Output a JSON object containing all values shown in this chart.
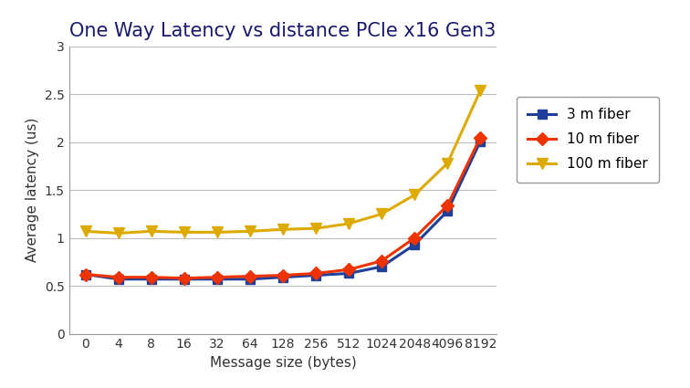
{
  "title": "One Way Latency vs distance PCIe x16 Gen3",
  "xlabel": "Message size (bytes)",
  "ylabel": "Average latency (us)",
  "x_labels": [
    "0",
    "4",
    "8",
    "16",
    "32",
    "64",
    "128",
    "256",
    "512",
    "1024",
    "2048",
    "4096",
    "8192"
  ],
  "x_positions": [
    0,
    1,
    2,
    3,
    4,
    5,
    6,
    7,
    8,
    9,
    10,
    11,
    12
  ],
  "series": [
    {
      "label": "3 m fiber",
      "color": "#1f3f99",
      "marker": "s",
      "markersize": 7,
      "linewidth": 2.2,
      "values": [
        0.62,
        0.57,
        0.57,
        0.57,
        0.57,
        0.57,
        0.59,
        0.61,
        0.63,
        0.7,
        0.93,
        1.28,
        2.01
      ]
    },
    {
      "label": "10 m fiber",
      "color": "#ee3300",
      "marker": "D",
      "markersize": 7,
      "linewidth": 2.2,
      "values": [
        0.62,
        0.59,
        0.59,
        0.58,
        0.59,
        0.6,
        0.61,
        0.63,
        0.67,
        0.76,
        1.0,
        1.34,
        2.05
      ]
    },
    {
      "label": "100 m fiber",
      "color": "#ddaa00",
      "marker": "v",
      "markersize": 9,
      "linewidth": 2.2,
      "values": [
        1.07,
        1.05,
        1.07,
        1.06,
        1.06,
        1.07,
        1.09,
        1.1,
        1.15,
        1.25,
        1.45,
        1.78,
        2.54
      ]
    }
  ],
  "ylim": [
    0,
    3.0
  ],
  "yticks": [
    0,
    0.5,
    1.0,
    1.5,
    2.0,
    2.5,
    3.0
  ],
  "ytick_labels": [
    "0",
    "0.5",
    "1",
    "1.5",
    "2",
    "2.5",
    "3"
  ],
  "background_color": "#ffffff",
  "grid_color": "#bbbbbb",
  "title_color": "#1a1a6e",
  "axis_label_color": "#333333",
  "title_fontsize": 15,
  "axis_label_fontsize": 11,
  "tick_fontsize": 10,
  "legend_fontsize": 11
}
